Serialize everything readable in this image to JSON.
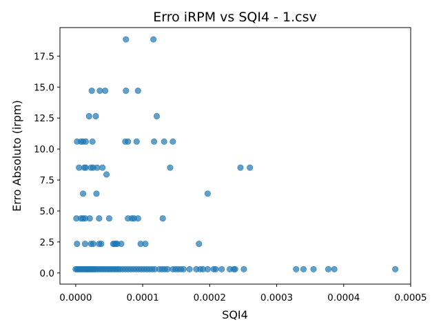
{
  "chart_data": {
    "type": "scatter",
    "title": "Erro iRPM vs SQI4 - 1.csv",
    "xlabel": "SQI4",
    "ylabel": "Erro Absoluto (irpm)",
    "xlim": [
      -2.35e-05,
      0.0005
    ],
    "ylim": [
      -0.9,
      19.8
    ],
    "x_ticks": [
      0.0,
      0.0001,
      0.0002,
      0.0003,
      0.0004,
      0.0005
    ],
    "x_tick_labels": [
      "0.0000",
      "0.0001",
      "0.0002",
      "0.0003",
      "0.0004",
      "0.0005"
    ],
    "y_ticks": [
      0.0,
      2.5,
      5.0,
      7.5,
      10.0,
      12.5,
      15.0,
      17.5
    ],
    "y_tick_labels": [
      "0.0",
      "2.5",
      "5.0",
      "7.5",
      "10.0",
      "12.5",
      "15.0",
      "17.5"
    ],
    "grid": false,
    "marker_color": "#1f77b4",
    "marker_alpha": 0.7,
    "points": [
      [
        7.5e-05,
        18.85
      ],
      [
        0.000116,
        18.85
      ],
      [
        2.4e-05,
        14.7
      ],
      [
        3.6e-05,
        14.7
      ],
      [
        4.4e-05,
        14.7
      ],
      [
        7.5e-05,
        14.7
      ],
      [
        9.3e-05,
        14.7
      ],
      [
        2e-05,
        12.65
      ],
      [
        3e-05,
        12.65
      ],
      [
        0.000121,
        12.65
      ],
      [
        2e-06,
        10.6
      ],
      [
        8e-06,
        10.6
      ],
      [
        1.1e-05,
        10.6
      ],
      [
        1.5e-05,
        10.6
      ],
      [
        2.5e-05,
        10.6
      ],
      [
        7.4e-05,
        10.6
      ],
      [
        7.8e-05,
        10.6
      ],
      [
        9.1e-05,
        10.6
      ],
      [
        0.000117,
        10.6
      ],
      [
        0.000132,
        10.6
      ],
      [
        0.000145,
        10.6
      ],
      [
        5e-06,
        8.5
      ],
      [
        1.3e-05,
        8.5
      ],
      [
        1.5e-05,
        8.5
      ],
      [
        2.3e-05,
        8.5
      ],
      [
        2.6e-05,
        8.5
      ],
      [
        3.2e-05,
        8.5
      ],
      [
        4e-05,
        8.5
      ],
      [
        0.000141,
        8.5
      ],
      [
        0.000246,
        8.5
      ],
      [
        0.00026,
        8.5
      ],
      [
        4.6e-05,
        7.95
      ],
      [
        1.1e-05,
        6.4
      ],
      [
        3.1e-05,
        6.4
      ],
      [
        0.000197,
        6.4
      ],
      [
        1e-06,
        4.4
      ],
      [
        8e-06,
        4.4
      ],
      [
        1.1e-05,
        4.4
      ],
      [
        1.4e-05,
        4.4
      ],
      [
        2.1e-05,
        4.4
      ],
      [
        3.5e-05,
        4.4
      ],
      [
        5e-05,
        4.4
      ],
      [
        7.8e-05,
        4.4
      ],
      [
        8.4e-05,
        4.4
      ],
      [
        8.7e-05,
        4.4
      ],
      [
        9.3e-05,
        4.4
      ],
      [
        0.00013,
        4.4
      ],
      [
        2e-06,
        2.35
      ],
      [
        1.4e-05,
        2.35
      ],
      [
        2.3e-05,
        2.35
      ],
      [
        2.6e-05,
        2.35
      ],
      [
        3.5e-05,
        2.35
      ],
      [
        3.8e-05,
        2.35
      ],
      [
        5.6e-05,
        2.35
      ],
      [
        5.8e-05,
        2.35
      ],
      [
        6e-05,
        2.35
      ],
      [
        6.2e-05,
        2.35
      ],
      [
        6.8e-05,
        2.35
      ],
      [
        9.7e-05,
        2.35
      ],
      [
        0.000104,
        2.35
      ],
      [
        0.000184,
        2.35
      ],
      [
        0.0,
        0.3
      ],
      [
        2e-06,
        0.3
      ],
      [
        4e-06,
        0.3
      ],
      [
        6e-06,
        0.3
      ],
      [
        8e-06,
        0.3
      ],
      [
        1e-05,
        0.3
      ],
      [
        1.2e-05,
        0.3
      ],
      [
        1.4e-05,
        0.3
      ],
      [
        1.6e-05,
        0.3
      ],
      [
        1.8e-05,
        0.3
      ],
      [
        2e-05,
        0.3
      ],
      [
        2.2e-05,
        0.3
      ],
      [
        2.4e-05,
        0.3
      ],
      [
        2.6e-05,
        0.3
      ],
      [
        2.8e-05,
        0.3
      ],
      [
        3e-05,
        0.3
      ],
      [
        3.3e-05,
        0.3
      ],
      [
        3.6e-05,
        0.3
      ],
      [
        3.9e-05,
        0.3
      ],
      [
        4.2e-05,
        0.3
      ],
      [
        4.5e-05,
        0.3
      ],
      [
        4.8e-05,
        0.3
      ],
      [
        5.1e-05,
        0.3
      ],
      [
        5.4e-05,
        0.3
      ],
      [
        5.7e-05,
        0.3
      ],
      [
        6e-05,
        0.3
      ],
      [
        6.3e-05,
        0.3
      ],
      [
        6.6e-05,
        0.3
      ],
      [
        7e-05,
        0.3
      ],
      [
        7.4e-05,
        0.3
      ],
      [
        7.8e-05,
        0.3
      ],
      [
        8.2e-05,
        0.3
      ],
      [
        8.6e-05,
        0.3
      ],
      [
        9e-05,
        0.3
      ],
      [
        9.4e-05,
        0.3
      ],
      [
        9.8e-05,
        0.3
      ],
      [
        0.000102,
        0.3
      ],
      [
        0.000106,
        0.3
      ],
      [
        0.00011,
        0.3
      ],
      [
        0.000114,
        0.3
      ],
      [
        0.000118,
        0.3
      ],
      [
        0.000125,
        0.3
      ],
      [
        0.000129,
        0.3
      ],
      [
        0.000133,
        0.3
      ],
      [
        0.000137,
        0.3
      ],
      [
        0.000145,
        0.3
      ],
      [
        0.000149,
        0.3
      ],
      [
        0.000153,
        0.3
      ],
      [
        0.000157,
        0.3
      ],
      [
        0.000161,
        0.3
      ],
      [
        0.00017,
        0.3
      ],
      [
        0.00018,
        0.3
      ],
      [
        0.000186,
        0.3
      ],
      [
        0.00019,
        0.3
      ],
      [
        0.000197,
        0.3
      ],
      [
        0.000206,
        0.3
      ],
      [
        0.000209,
        0.3
      ],
      [
        0.000218,
        0.3
      ],
      [
        0.00023,
        0.3
      ],
      [
        0.000236,
        0.3
      ],
      [
        0.000238,
        0.3
      ],
      [
        0.000251,
        0.3
      ],
      [
        0.000329,
        0.3
      ],
      [
        0.00034,
        0.3
      ],
      [
        0.000355,
        0.3
      ],
      [
        0.000377,
        0.3
      ],
      [
        0.000386,
        0.3
      ],
      [
        0.000477,
        0.3
      ]
    ]
  }
}
